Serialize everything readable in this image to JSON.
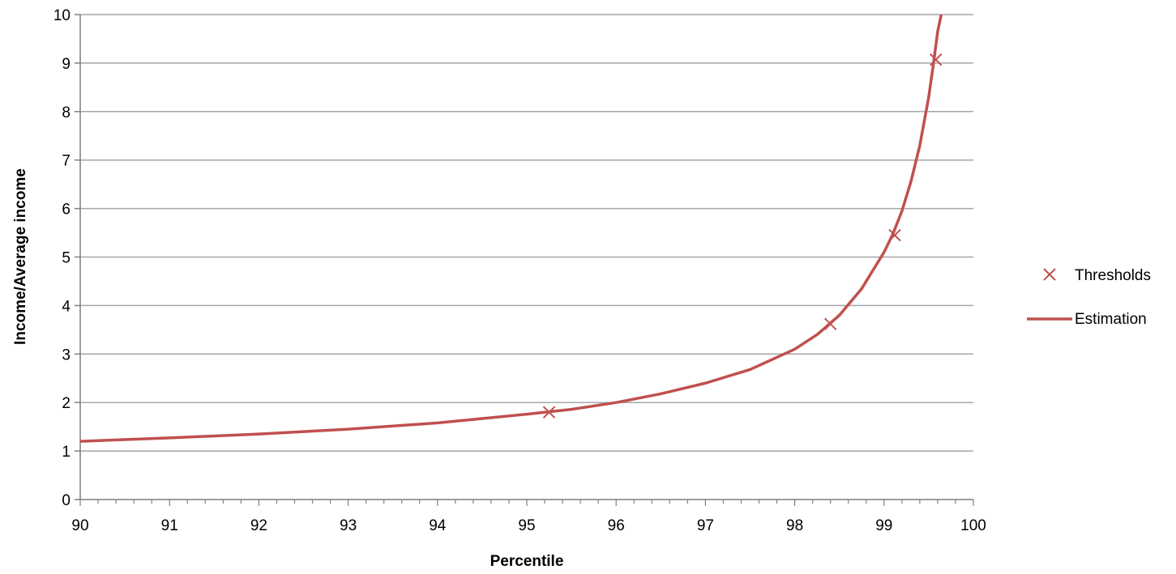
{
  "chart_data": {
    "type": "line",
    "xlabel": "Percentile",
    "ylabel": "Income/Average income",
    "xlim": [
      90,
      100
    ],
    "ylim": [
      0,
      10
    ],
    "x_ticks": [
      90,
      91,
      92,
      93,
      94,
      95,
      96,
      97,
      98,
      99,
      100
    ],
    "y_ticks": [
      0,
      1,
      2,
      3,
      4,
      5,
      6,
      7,
      8,
      9,
      10
    ],
    "grid": "horizontal",
    "legend_position": "right",
    "colors": {
      "series": "#c0504d",
      "grid": "#a6a6a6",
      "axis": "#7f7f7f"
    },
    "series": [
      {
        "name": "Thresholds",
        "kind": "scatter",
        "marker": "x",
        "x": [
          95.25,
          98.4,
          99.12,
          99.58
        ],
        "y": [
          1.8,
          3.62,
          5.45,
          9.07
        ]
      },
      {
        "name": "Estimation",
        "kind": "line",
        "x": [
          90,
          91,
          92,
          93,
          94,
          95,
          95.5,
          96,
          96.5,
          97,
          97.5,
          98,
          98.25,
          98.5,
          98.75,
          99,
          99.1,
          99.2,
          99.3,
          99.4,
          99.5,
          99.55,
          99.6,
          99.64
        ],
        "y": [
          1.2,
          1.27,
          1.35,
          1.45,
          1.58,
          1.76,
          1.86,
          2.0,
          2.18,
          2.4,
          2.68,
          3.1,
          3.4,
          3.8,
          4.35,
          5.1,
          5.48,
          5.95,
          6.55,
          7.3,
          8.3,
          8.95,
          9.65,
          10.0
        ]
      }
    ]
  }
}
